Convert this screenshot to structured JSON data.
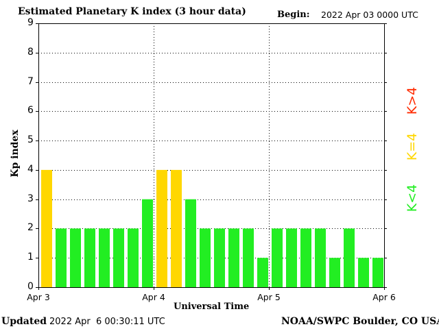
{
  "header": {
    "title": "Estimated Planetary K index (3 hour data)",
    "begin_label": "Begin:",
    "begin_value": "2022 Apr 03 0000 UTC"
  },
  "footer": {
    "updated_label": "Updated",
    "updated_value": "2022 Apr  6 00:30:11 UTC",
    "credit": "NOAA/SWPC Boulder, CO USA"
  },
  "legend": {
    "low": {
      "label": "K<4",
      "color": "#22ee22"
    },
    "mid": {
      "label": "K=4",
      "color": "#ffd700"
    },
    "high": {
      "label": "K>4",
      "color": "#ff2a00"
    }
  },
  "chart_data": {
    "type": "bar",
    "title": "Estimated Planetary K index (3 hour data)",
    "xlabel": "Universal Time",
    "ylabel": "Kp index",
    "ylim": [
      0,
      9
    ],
    "yticks": [
      0,
      1,
      2,
      3,
      4,
      5,
      6,
      7,
      8,
      9
    ],
    "xticks": [
      "Apr 3",
      "Apr 4",
      "Apr 5",
      "Apr 6"
    ],
    "grid": true,
    "values": [
      4,
      2,
      2,
      2,
      2,
      2,
      2,
      3,
      4,
      4,
      3,
      2,
      2,
      2,
      2,
      1,
      2,
      2,
      2,
      2,
      1,
      2,
      1,
      1
    ],
    "colors": {
      "below": "#22ee22",
      "equal": "#ffd700",
      "above": "#ff2a00"
    }
  }
}
